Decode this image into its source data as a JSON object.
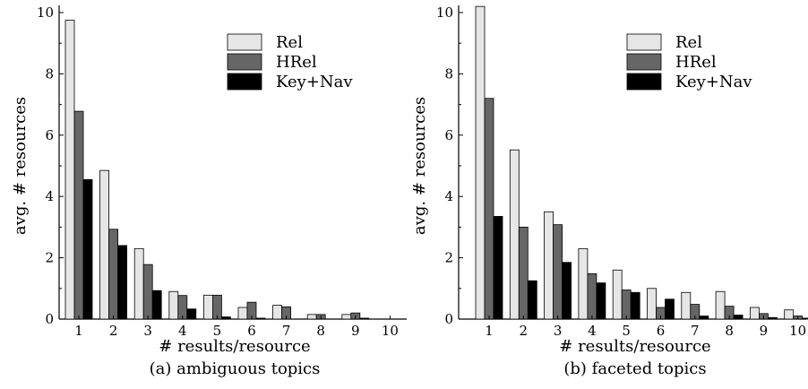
{
  "chart_data": [
    {
      "type": "bar",
      "caption": "(a) ambiguous topics",
      "xlabel": "# results/resource",
      "ylabel": "avg. # resources",
      "categories": [
        "1",
        "2",
        "3",
        "4",
        "5",
        "6",
        "7",
        "8",
        "9",
        "10"
      ],
      "ylim": [
        0,
        10
      ],
      "yticks": [
        "0",
        "2",
        "4",
        "6",
        "8",
        "10"
      ],
      "legend_position": "top-right",
      "series": [
        {
          "name": "Rel",
          "color": "#e6e6e6",
          "values": [
            9.75,
            4.85,
            2.3,
            0.9,
            0.78,
            0.38,
            0.45,
            0.15,
            0.15,
            0.0
          ]
        },
        {
          "name": "HRel",
          "color": "#666666",
          "values": [
            6.78,
            2.93,
            1.78,
            0.77,
            0.78,
            0.55,
            0.4,
            0.15,
            0.2,
            0.0
          ]
        },
        {
          "name": "Key+Nav",
          "color": "#000000",
          "values": [
            4.55,
            2.4,
            0.93,
            0.33,
            0.07,
            0.03,
            0.0,
            0.0,
            0.03,
            0.0
          ]
        }
      ]
    },
    {
      "type": "bar",
      "caption": "(b) faceted topics",
      "xlabel": "# results/resource",
      "ylabel": "avg. # resources",
      "categories": [
        "1",
        "2",
        "3",
        "4",
        "5",
        "6",
        "7",
        "8",
        "9",
        "10"
      ],
      "ylim": [
        0,
        10
      ],
      "yticks": [
        "0",
        "2",
        "4",
        "6",
        "8",
        "10"
      ],
      "legend_position": "top-right",
      "series": [
        {
          "name": "Rel",
          "color": "#e6e6e6",
          "values": [
            10.2,
            5.52,
            3.5,
            2.3,
            1.6,
            1.0,
            0.87,
            0.9,
            0.38,
            0.3
          ]
        },
        {
          "name": "HRel",
          "color": "#666666",
          "values": [
            7.2,
            3.0,
            3.08,
            1.48,
            0.95,
            0.38,
            0.48,
            0.42,
            0.18,
            0.1
          ]
        },
        {
          "name": "Key+Nav",
          "color": "#000000",
          "values": [
            3.35,
            1.25,
            1.85,
            1.18,
            0.87,
            0.65,
            0.1,
            0.13,
            0.05,
            0.03
          ]
        }
      ]
    }
  ]
}
